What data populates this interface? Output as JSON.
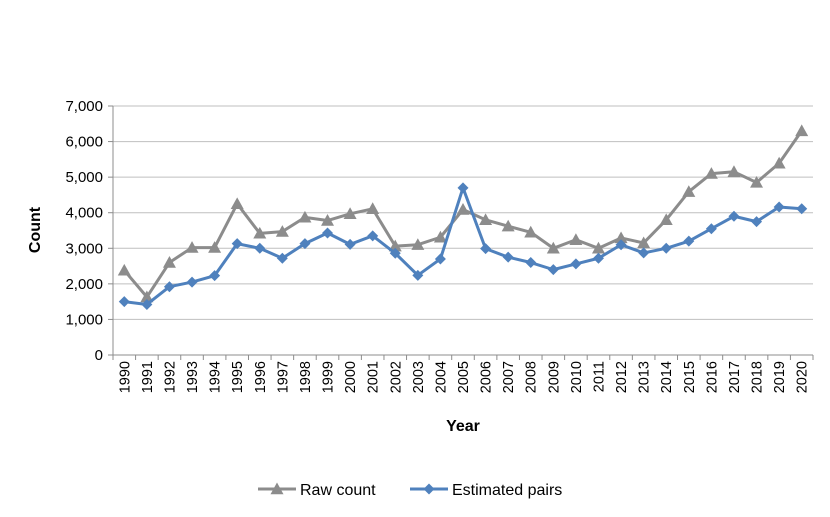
{
  "chart_data": {
    "type": "line",
    "title": "",
    "xlabel": "Year",
    "ylabel": "Count",
    "ylim": [
      0,
      7000
    ],
    "y_ticks": [
      "0",
      "1,000",
      "2,000",
      "3,000",
      "4,000",
      "5,000",
      "6,000",
      "7,000"
    ],
    "grid": "horizontal",
    "legend_position": "bottom",
    "categories": [
      "1990",
      "1991",
      "1992",
      "1993",
      "1994",
      "1995",
      "1996",
      "1997",
      "1998",
      "1999",
      "2000",
      "2001",
      "2002",
      "2003",
      "2004",
      "2005",
      "2006",
      "2007",
      "2008",
      "2009",
      "2010",
      "2011",
      "2012",
      "2013",
      "2014",
      "2015",
      "2016",
      "2017",
      "2018",
      "2019",
      "2020"
    ],
    "series": [
      {
        "name": "Raw count",
        "color": "#8c8c8c",
        "marker": "triangle",
        "values": [
          2380,
          1630,
          2600,
          3020,
          3020,
          4250,
          3420,
          3470,
          3870,
          3780,
          3970,
          4110,
          3060,
          3100,
          3310,
          4090,
          3800,
          3620,
          3450,
          3000,
          3240,
          3000,
          3290,
          3150,
          3800,
          4590,
          5100,
          5150,
          4850,
          5390,
          6300
        ]
      },
      {
        "name": "Estimated pairs",
        "color": "#4f81bd",
        "marker": "diamond",
        "values": [
          1500,
          1420,
          1920,
          2050,
          2230,
          3130,
          3000,
          2720,
          3130,
          3430,
          3110,
          3350,
          2860,
          2240,
          2700,
          4700,
          2990,
          2750,
          2600,
          2400,
          2560,
          2720,
          3100,
          2870,
          3000,
          3200,
          3550,
          3900,
          3750,
          4160,
          4110
        ]
      }
    ]
  }
}
